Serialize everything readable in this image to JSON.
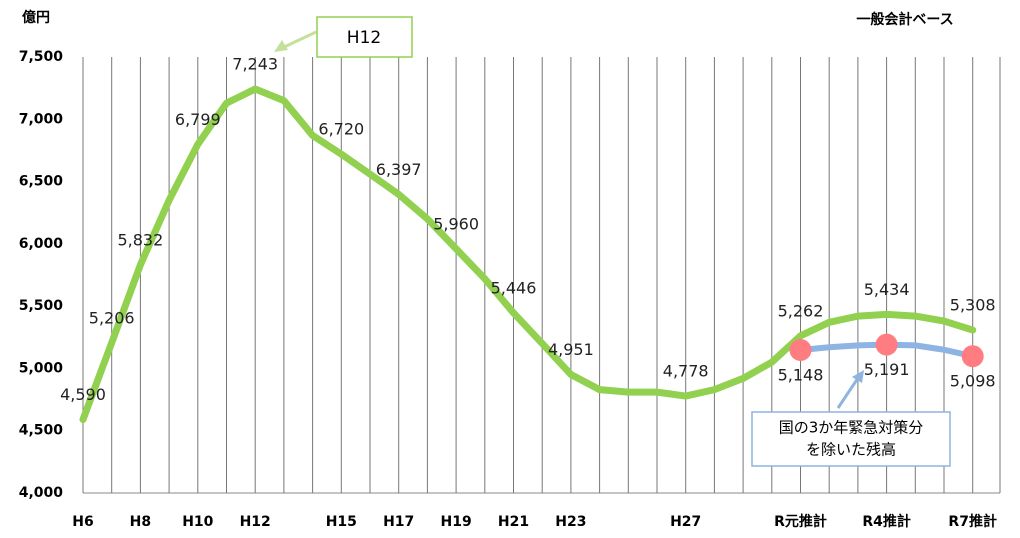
{
  "chart_data": {
    "type": "line",
    "y_unit": "億円",
    "subtitle": "一般会計ベース",
    "annotations": [
      "H12",
      "国の3か年緊急対策分",
      "を除いた残高"
    ],
    "categories": [
      "H6",
      null,
      "H8",
      null,
      "H10",
      null,
      "H12",
      null,
      null,
      "H15",
      null,
      "H17",
      null,
      "H19",
      null,
      "H21",
      null,
      "H23",
      null,
      null,
      null,
      "H27",
      null,
      null,
      null,
      "R元推計",
      null,
      null,
      "R4推計",
      null,
      null,
      "R7推計"
    ],
    "series": [
      {
        "color": "#92d050",
        "values": [
          4590,
          5206,
          5832,
          6350,
          6799,
          7130,
          7243,
          7150,
          6870,
          6720,
          6560,
          6397,
          6200,
          5960,
          5720,
          5446,
          5200,
          4951,
          4830,
          4810,
          4810,
          4778,
          4830,
          4920,
          5050,
          5262,
          5370,
          5420,
          5434,
          5420,
          5380,
          5308
        ],
        "value_labels": [
          "4,590",
          "5,206",
          "5,832",
          null,
          "6,799",
          null,
          "7,243",
          null,
          null,
          "6,720",
          null,
          "6,397",
          null,
          "5,960",
          null,
          "5,446",
          null,
          "4,951",
          null,
          null,
          null,
          "4,778",
          null,
          null,
          null,
          "5,262",
          null,
          null,
          "5,434",
          null,
          null,
          "5,308"
        ]
      },
      {
        "color": "#8db4e2",
        "marker_color": "#ff7c80",
        "values": [
          null,
          null,
          null,
          null,
          null,
          null,
          null,
          null,
          null,
          null,
          null,
          null,
          null,
          null,
          null,
          null,
          null,
          null,
          null,
          null,
          null,
          null,
          null,
          null,
          null,
          5148,
          5170,
          5185,
          5191,
          5185,
          5150,
          5098
        ],
        "value_labels": [
          null,
          null,
          null,
          null,
          null,
          null,
          null,
          null,
          null,
          null,
          null,
          null,
          null,
          null,
          null,
          null,
          null,
          null,
          null,
          null,
          null,
          null,
          null,
          null,
          null,
          "5,148",
          null,
          null,
          "5,191",
          null,
          null,
          "5,098"
        ]
      }
    ],
    "ylim": [
      4000,
      7500
    ],
    "yticks": [
      {
        "value": 4000,
        "label": "4,000"
      },
      {
        "value": 4500,
        "label": "4,500"
      },
      {
        "value": 5000,
        "label": "5,000"
      },
      {
        "value": 5500,
        "label": "5,500"
      },
      {
        "value": 6000,
        "label": "6,000"
      },
      {
        "value": 6500,
        "label": "6,500"
      },
      {
        "value": 7000,
        "label": "7,000"
      },
      {
        "value": 7500,
        "label": "7,500"
      }
    ],
    "grid": true
  }
}
